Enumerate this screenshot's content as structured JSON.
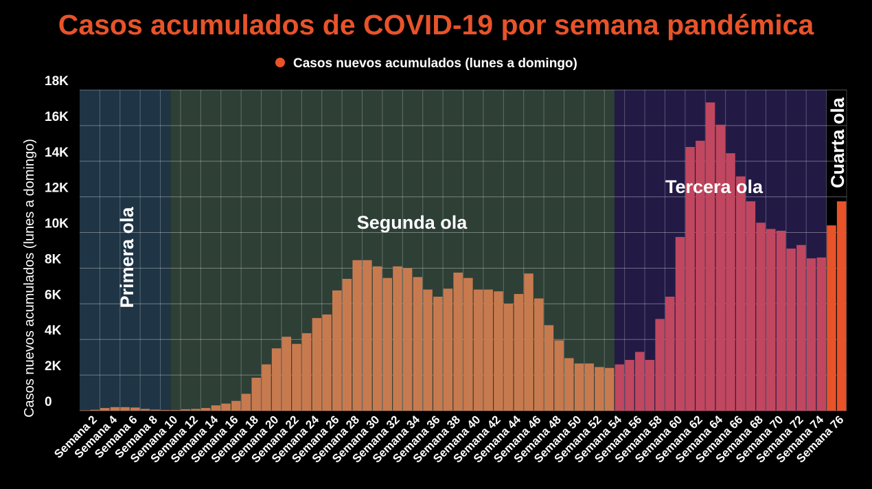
{
  "chart_data": {
    "type": "bar",
    "title": "Casos acumulados de COVID-19 por semana pandémica",
    "y_label": "Casos nuevos acumulados (lunes a domingo)",
    "legend": "top",
    "series": [
      {
        "name": "Casos nuevos acumulados (lunes a domingo)",
        "color": "#e8532a",
        "values": [
          20,
          50,
          150,
          200,
          200,
          180,
          100,
          60,
          40,
          40,
          80,
          100,
          150,
          300,
          400,
          550,
          950,
          1850,
          2600,
          3500,
          4150,
          3750,
          4350,
          5200,
          5400,
          6750,
          7400,
          8450,
          8450,
          8100,
          7450,
          8100,
          8000,
          7500,
          6800,
          6400,
          6850,
          7750,
          7450,
          6800,
          6800,
          6700,
          6000,
          6550,
          7700,
          6300,
          4800,
          3950,
          2950,
          2650,
          2650,
          2450,
          2400,
          2600,
          2850,
          3300,
          2850,
          5150,
          6400,
          9750,
          14800,
          15150,
          17300,
          16050,
          14450,
          13150,
          11750,
          10550,
          10200,
          10100,
          9100,
          9300,
          8550,
          8600,
          10400,
          11750
        ]
      }
    ],
    "categories": [
      null,
      "Semana 2",
      null,
      "Semana 4",
      null,
      "Semana 6",
      null,
      "Semana 8",
      null,
      "Semana 10",
      null,
      "Semana 12",
      null,
      "Semana 14",
      null,
      "Semana 16",
      null,
      "Semana 18",
      null,
      "Semana 20",
      null,
      "Semana 22",
      null,
      "Semana 24",
      null,
      "Semana 26",
      null,
      "Semana 28",
      null,
      "Semana 30",
      null,
      "Semana 32",
      null,
      "Semana 34",
      null,
      "Semana 36",
      null,
      "Semana 38",
      null,
      "Semana 40",
      null,
      "Semana 42",
      null,
      "Semana 44",
      null,
      "Semana 46",
      null,
      "Semana 48",
      null,
      "Semana 50",
      null,
      "Semana 52",
      null,
      "Semana 54",
      null,
      "Semana 56",
      null,
      "Semana 58",
      null,
      "Semana 60",
      null,
      "Semana 62",
      null,
      "Semana 64",
      null,
      "Semana 66",
      null,
      "Semana 68",
      null,
      "Semana 70",
      null,
      "Semana 72",
      null,
      "Semana 74",
      null,
      "Semana 76"
    ],
    "bands": [
      {
        "label": "Primera ola",
        "start": 1,
        "end": 9,
        "color": "#1f3545",
        "bar_color": "#c87a4f"
      },
      {
        "label": "Segunda ola",
        "start": 10,
        "end": 53,
        "color": "#2e3f36",
        "bar_color": "#c87a4f"
      },
      {
        "label": "Tercera ola",
        "start": 54,
        "end": 74,
        "color": "#221a45",
        "bar_color": "#c0475f"
      },
      {
        "label": "Cuarta ola",
        "start": 75,
        "end": 76,
        "color": "#000000",
        "bar_color": "#e8532a"
      }
    ],
    "ylim": [
      0,
      18000
    ],
    "yticks": [
      0,
      {
        "value": 2000,
        "label": "2K"
      },
      {
        "value": 4000,
        "label": "4K"
      },
      {
        "value": 6000,
        "label": "6K"
      },
      {
        "value": 8000,
        "label": "8K"
      },
      {
        "value": 10000,
        "label": "10K"
      },
      {
        "value": 12000,
        "label": "12K"
      },
      {
        "value": 14000,
        "label": "14K"
      },
      {
        "value": 16000,
        "label": "16K"
      },
      {
        "value": 18000,
        "label": "18K"
      }
    ],
    "grid": true
  }
}
